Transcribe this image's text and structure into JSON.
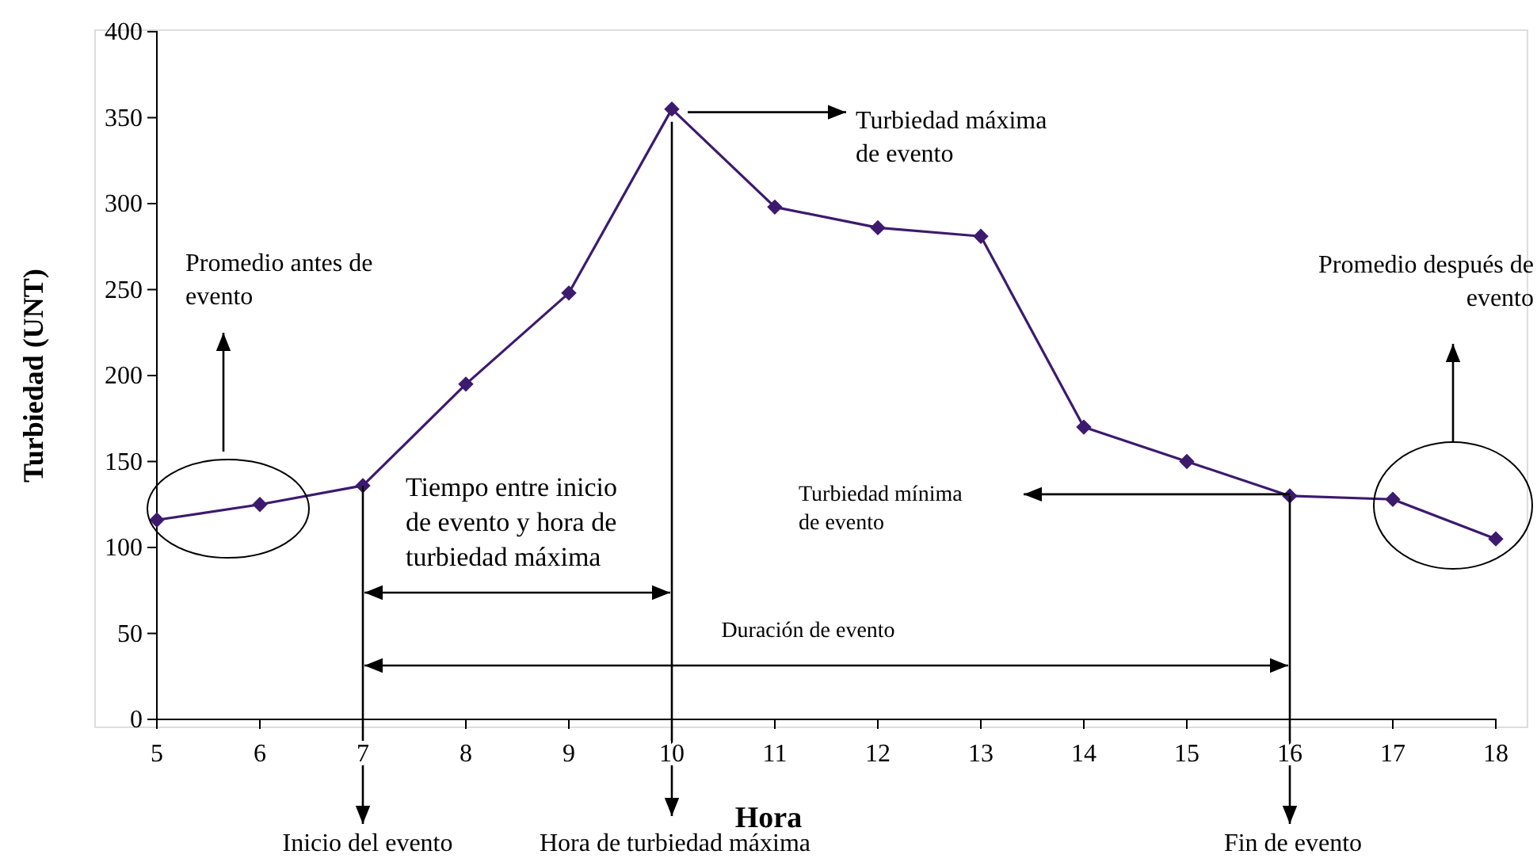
{
  "chart_data": {
    "type": "line",
    "xlabel": "Hora",
    "ylabel": "Turbiedad (UNT)",
    "x": [
      5,
      6,
      7,
      8,
      9,
      10,
      11,
      12,
      13,
      14,
      15,
      16,
      17,
      18
    ],
    "series": [
      {
        "color": "#3c1a6e",
        "values": [
          116,
          125,
          136,
          195,
          248,
          355,
          298,
          286,
          281,
          170,
          150,
          130,
          128,
          105
        ]
      }
    ],
    "xlim": [
      5,
      18
    ],
    "xticks": [
      5,
      6,
      7,
      8,
      9,
      10,
      11,
      12,
      13,
      14,
      15,
      16,
      17,
      18
    ],
    "ylim": [
      0,
      400
    ],
    "yticks": [
      0,
      50,
      100,
      150,
      200,
      250,
      300,
      350,
      400
    ],
    "marker": "diamond",
    "line_style": "solid",
    "annotations": [
      "Promedio antes de evento",
      "Tiempo entre inicio de evento y hora de turbiedad máxima",
      "Duración de evento",
      "Turbiedad máxima de evento",
      "Turbiedad mínima de evento",
      "Promedio después de evento",
      "Inicio del evento",
      "Hora de turbiedad máxima",
      "Fin de evento"
    ]
  }
}
